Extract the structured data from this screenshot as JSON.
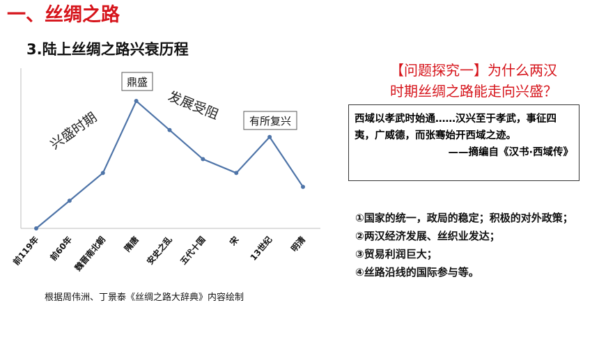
{
  "header": {
    "section_title": "一、丝绸之路",
    "sub_title": "3.陆上丝绸之路兴衰历程"
  },
  "chart_data": {
    "type": "line",
    "title": "",
    "xlabel": "",
    "ylabel": "",
    "categories": [
      "前119年",
      "前60年",
      "魏晋南北朝",
      "隋唐",
      "安史之乱",
      "五代十国",
      "宋",
      "13世纪",
      "明清"
    ],
    "series": [
      {
        "values": [
          0,
          20,
          40,
          92,
          71,
          50,
          40,
          66,
          30
        ]
      }
    ],
    "ylim": [
      0,
      100
    ],
    "grid": false,
    "line_color": "#4e74a8",
    "annotations": [
      {
        "text": "鼎盛",
        "boxed": true
      },
      {
        "text": "发展受阻",
        "boxed": false
      },
      {
        "text": "兴盛时期",
        "boxed": false
      },
      {
        "text": "有所复兴",
        "boxed": true
      }
    ],
    "caption": "根据周伟洲、丁景泰《丝绸之路大辞典》内容绘制"
  },
  "question": {
    "line1": "【问题探究一】为什么两汉",
    "line2": "时期丝绸之路能走向兴盛？"
  },
  "quote": {
    "text": "西域以孝武时始通……汉兴至于孝武，事征四夷，广威德，而张骞始开西域之迹。",
    "source": "——摘编自《汉书·西域传》"
  },
  "reasons": [
    "①国家的统一，政局的稳定；积极的对外政策；",
    "②两汉经济发展、丝织业发达；",
    "③贸易利润巨大；",
    "④丝路沿线的国际参与等。"
  ],
  "colors": {
    "accent_red": "#d6141b",
    "line_blue": "#4e74a8"
  }
}
